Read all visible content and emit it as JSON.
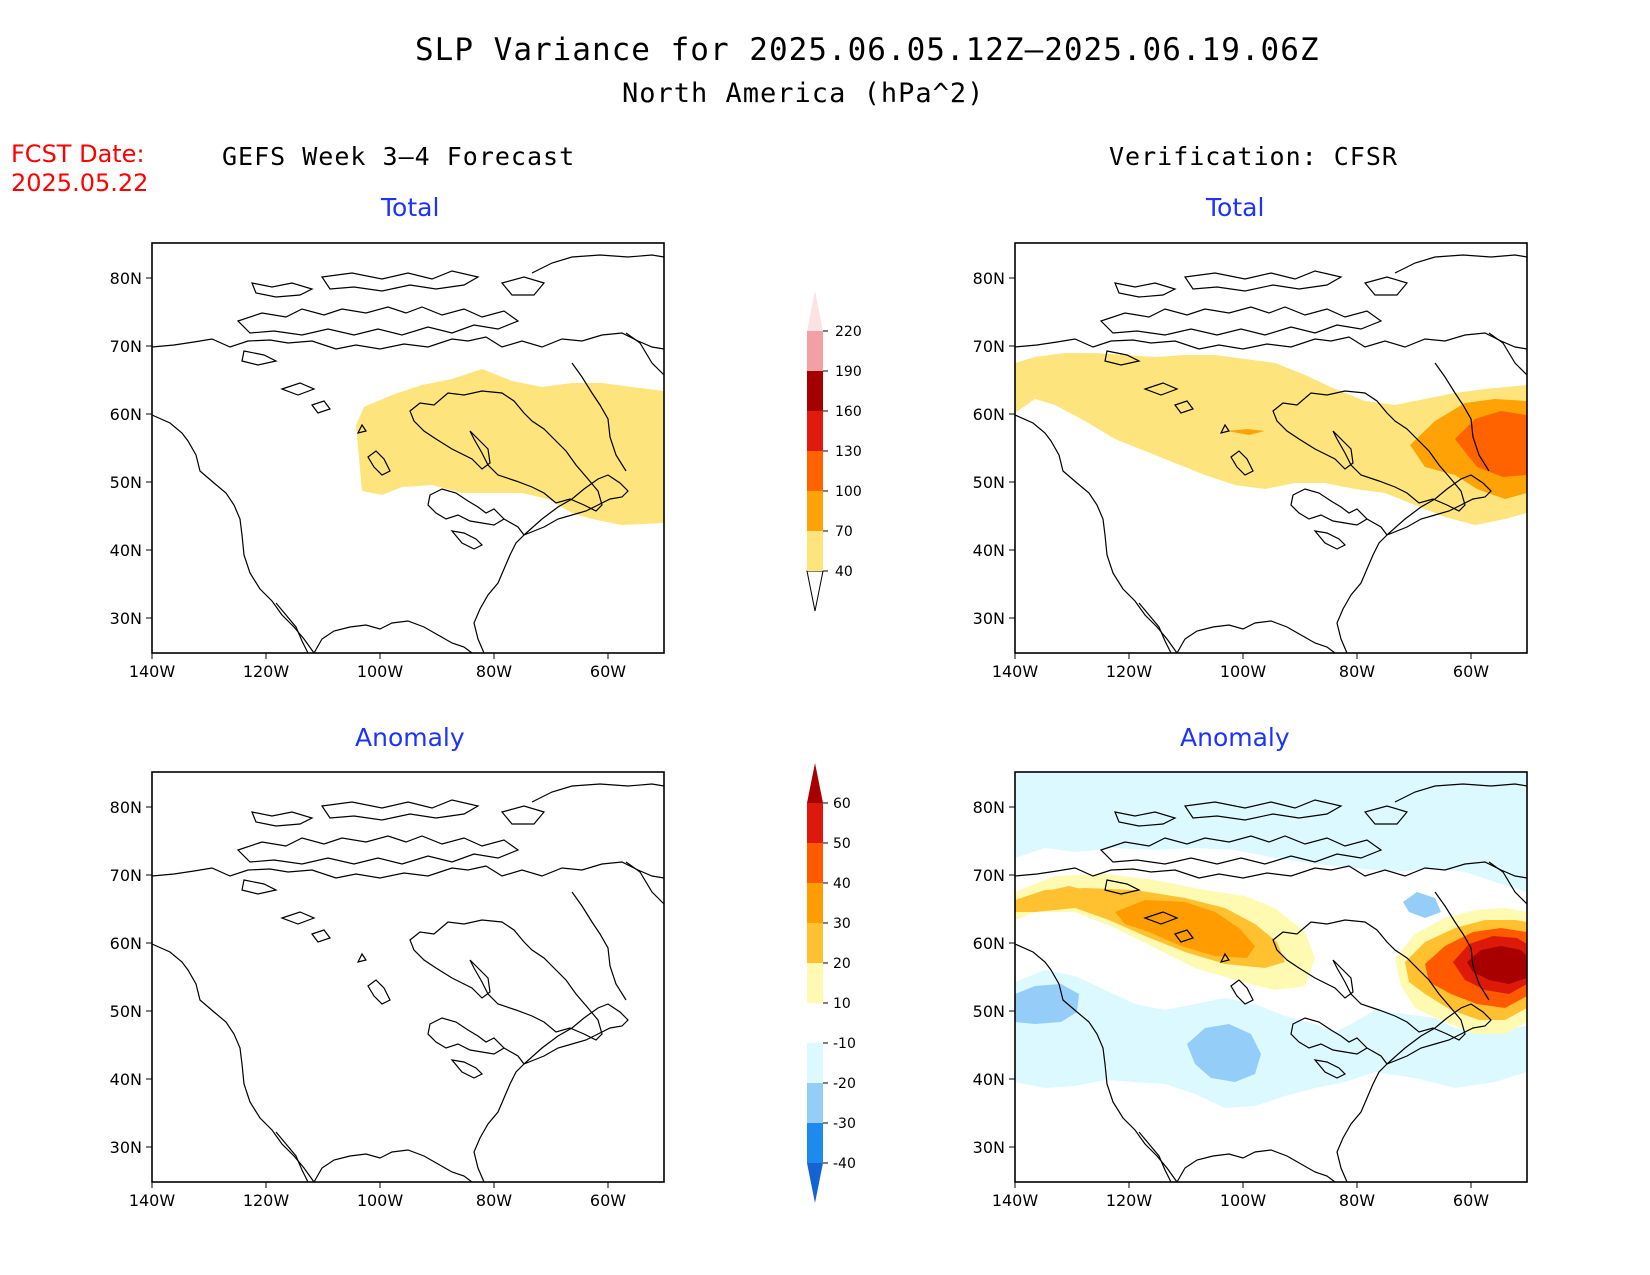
{
  "title": "SLP Variance for 2025.06.05.12Z–2025.06.19.06Z",
  "subtitle": "North America (hPa^2)",
  "fcst_label": "FCST Date:",
  "fcst_date": "2025.05.22",
  "left_header": "GEFS Week 3–4 Forecast",
  "right_header": "Verification: CFSR",
  "panels": {
    "forecast_total": "Total",
    "forecast_anomaly": "Anomaly",
    "verification_total": "Total",
    "verification_anomaly": "Anomaly"
  },
  "lat_labels": [
    "80N",
    "70N",
    "60N",
    "50N",
    "40N",
    "30N"
  ],
  "lon_labels": [
    "140W",
    "120W",
    "100W",
    "80W",
    "60W"
  ],
  "total_colorbar": {
    "levels": [
      "40",
      "70",
      "100",
      "130",
      "160",
      "190",
      "220"
    ],
    "colors": [
      "#fde47c",
      "#fea206",
      "#ff6300",
      "#e01a0c",
      "#a50000",
      "#f2a0a4",
      "#fce2e2"
    ]
  },
  "anomaly_colorbar": {
    "levels": [
      "-40",
      "-30",
      "-20",
      "-10",
      "10",
      "20",
      "30",
      "40",
      "50",
      "60"
    ],
    "colors": [
      "#1463d3",
      "#1e8af0",
      "#94cdf8",
      "#dcf9ff",
      "#ffffff",
      "#fffab2",
      "#ffc130",
      "#ff9c00",
      "#ff5a00",
      "#dd1a0a",
      "#a80000"
    ]
  }
}
